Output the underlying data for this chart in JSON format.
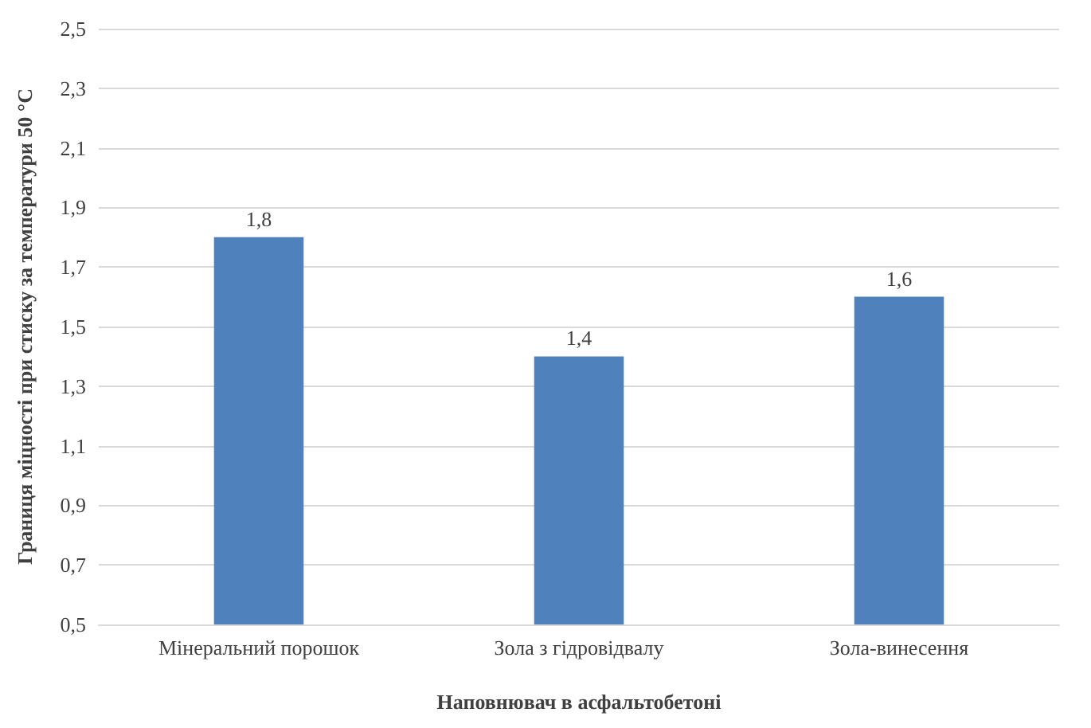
{
  "chart_data": {
    "type": "bar",
    "xlabel": "Наповнювач в асфальтобетоні",
    "ylabel": "Границя міцності при стиску за температури 50 °С",
    "categories": [
      "Мінеральний порошок",
      "Зола з гідровідвалу",
      "Зола-винесення"
    ],
    "values": [
      1.8,
      1.4,
      1.6
    ],
    "color": "#4f81bd",
    "value_labels": [
      "1,8",
      "1,4",
      "1,6"
    ],
    "ylim": [
      0.5,
      2.5
    ],
    "yticks": [
      {
        "value": 0.5,
        "label": "0,5"
      },
      {
        "value": 0.7,
        "label": "0,7"
      },
      {
        "value": 0.9,
        "label": "0,9"
      },
      {
        "value": 1.1,
        "label": "1,1"
      },
      {
        "value": 1.3,
        "label": "1,3"
      },
      {
        "value": 1.5,
        "label": "1,5"
      },
      {
        "value": 1.7,
        "label": "1,7"
      },
      {
        "value": 1.9,
        "label": "1,9"
      },
      {
        "value": 2.1,
        "label": "2,1"
      },
      {
        "value": 2.3,
        "label": "2,3"
      },
      {
        "value": 2.5,
        "label": "2,5"
      }
    ],
    "grid": "y"
  }
}
